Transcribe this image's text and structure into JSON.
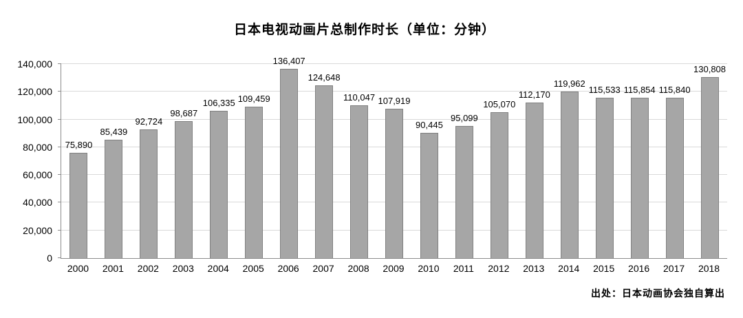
{
  "chart_data": {
    "type": "bar",
    "title": "日本电视动画片总制作时长（单位：分钟）",
    "categories": [
      "2000",
      "2001",
      "2002",
      "2003",
      "2004",
      "2005",
      "2006",
      "2007",
      "2008",
      "2009",
      "2010",
      "2011",
      "2012",
      "2013",
      "2014",
      "2015",
      "2016",
      "2017",
      "2018"
    ],
    "values": [
      75890,
      85439,
      92724,
      98687,
      106335,
      109459,
      136407,
      124648,
      110047,
      107919,
      90445,
      95099,
      105070,
      112170,
      119962,
      115533,
      115854,
      115840,
      130808
    ],
    "xlabel": "",
    "ylabel": "",
    "ylim": [
      0,
      140000
    ],
    "ytick_step": 20000,
    "grid": true,
    "legend": "none",
    "bar_color": "#a6a6a6",
    "bar_border_color": "#808080",
    "source": "出处：日本动画协会独自算出"
  }
}
